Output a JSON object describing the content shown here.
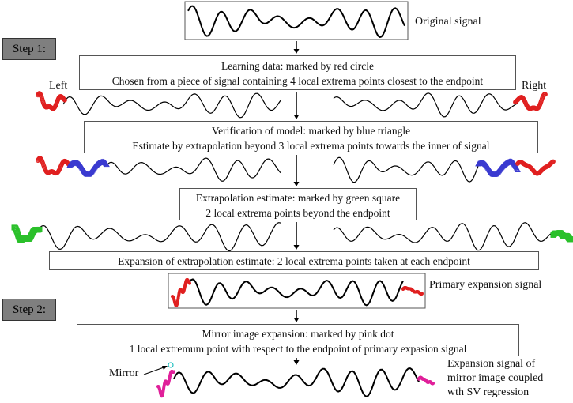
{
  "steps": {
    "step1": "Step 1:",
    "step2": "Step 2:"
  },
  "labels": {
    "original": "Original signal",
    "left": "Left",
    "right": "Right",
    "primary": "Primary expansion signal",
    "mirror": "Mirror",
    "final_1": "Expansion signal of",
    "final_2": "mirror image coupled",
    "final_3": "wth SV regression"
  },
  "boxes": {
    "learning_1": "Learning data: marked by red circle",
    "learning_2": "Chosen from a piece of signal containing 4 local extrema points closest to the endpoint",
    "verify_1": "Verification of model: marked by blue triangle",
    "verify_2": "Estimate by extrapolation beyond 3 local extrema points towards the inner of signal",
    "extrap_1": "Extrapolation estimate: marked by green square",
    "extrap_2": "2 local extrema points beyond the endpoint",
    "expansion": "Expansion of extrapolation estimate: 2 local extrema points taken at each endpoint",
    "mirror_1": "Mirror image expansion: marked by pink dot",
    "mirror_2": "1 local extremum point with respect to the endpoint of primary expasion signal"
  },
  "colors": {
    "red": "#e02020",
    "blue": "#3a3ad0",
    "green": "#2bc02b",
    "pink": "#e0209a",
    "cyan": "#20c0c0",
    "step_bg": "#7f7f7f"
  }
}
